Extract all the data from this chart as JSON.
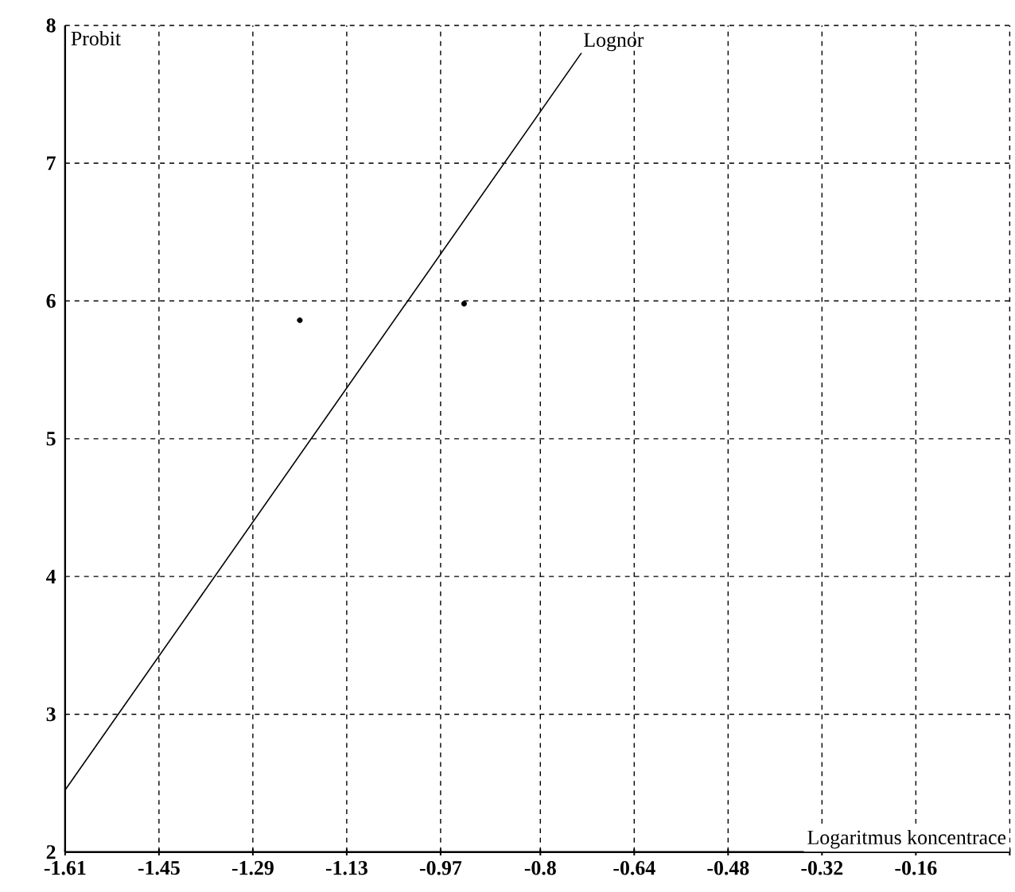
{
  "chart_data": {
    "type": "line",
    "xlabel": "Logaritmus koncentrace",
    "ylabel": "Probit",
    "xlim": [
      -1.61,
      0
    ],
    "ylim": [
      2,
      8
    ],
    "xticks": [
      -1.61,
      -1.45,
      -1.29,
      -1.13,
      -0.97,
      -0.8,
      -0.64,
      -0.48,
      -0.32,
      -0.16,
      {
        "value": 0,
        "label": null
      }
    ],
    "yticks": [
      2,
      3,
      4,
      5,
      6,
      7,
      8
    ],
    "grid": true,
    "series": [
      {
        "name": "Lognor",
        "color": "#000000",
        "x": [
          -1.61,
          -0.73
        ],
        "values": [
          2.45,
          7.8
        ]
      },
      {
        "type": "scatter",
        "color": "#000000",
        "x": [
          -1.21,
          -0.93
        ],
        "values": [
          5.86,
          5.98
        ]
      }
    ]
  }
}
